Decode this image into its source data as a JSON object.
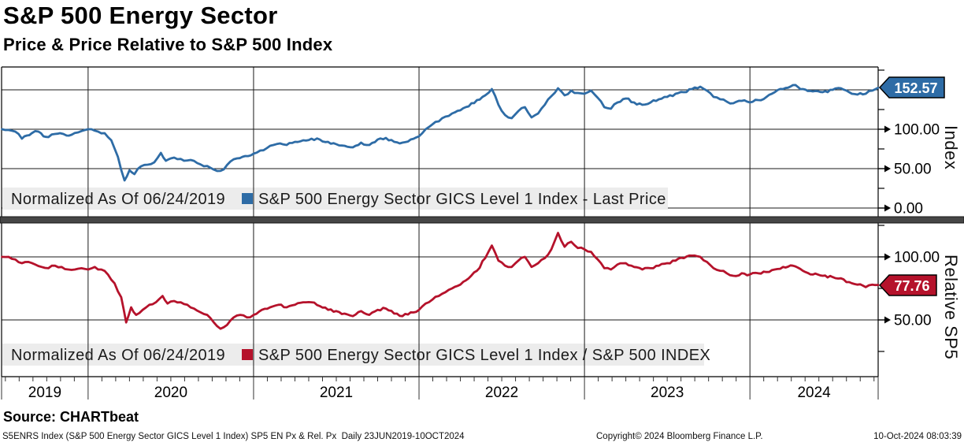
{
  "header": {
    "title": "S&P 500 Energy Sector",
    "subtitle": "Price & Price Relative to S&P 500 Index"
  },
  "chart_data": {
    "type": "line",
    "title": "S&P 500 Energy Sector",
    "subtitle": "Price & Price Relative to S&P 500 Index",
    "x_axis": {
      "start": 2019.477,
      "end": 2024.775,
      "date_range": "23JUN2019-10OCT2024",
      "years": [
        "2019",
        "2020",
        "2021",
        "2022",
        "2023",
        "2024"
      ]
    },
    "panels": [
      {
        "id": "price",
        "axis_title": "Index",
        "line_color": "#2e6ca6",
        "last_value": 152.57,
        "badge_label": "152.57",
        "legend_normalized": "Normalized As Of 06/24/2019",
        "legend_series": "S&P 500 Energy Sector GICS Level 1 Index - Last Price",
        "ticks": [
          {
            "v": 100,
            "label": "100.00"
          },
          {
            "v": 50,
            "label": "50.00"
          },
          {
            "v": 0,
            "label": "0.00"
          }
        ],
        "grid_values": [
          150,
          100,
          50,
          0
        ],
        "minor_ticks": [
          175,
          125,
          75,
          25
        ],
        "points": [
          [
            2019.48,
            100
          ],
          [
            2019.52,
            99
          ],
          [
            2019.56,
            97
          ],
          [
            2019.6,
            88
          ],
          [
            2019.63,
            92
          ],
          [
            2019.66,
            95
          ],
          [
            2019.7,
            97
          ],
          [
            2019.73,
            91
          ],
          [
            2019.76,
            90
          ],
          [
            2019.8,
            94
          ],
          [
            2019.83,
            95
          ],
          [
            2019.87,
            92
          ],
          [
            2019.9,
            93
          ],
          [
            2019.94,
            96
          ],
          [
            2019.98,
            99
          ],
          [
            2020.02,
            100
          ],
          [
            2020.06,
            97
          ],
          [
            2020.1,
            95
          ],
          [
            2020.14,
            86
          ],
          [
            2020.18,
            65
          ],
          [
            2020.22,
            35
          ],
          [
            2020.25,
            48
          ],
          [
            2020.28,
            43
          ],
          [
            2020.32,
            53
          ],
          [
            2020.36,
            55
          ],
          [
            2020.4,
            58
          ],
          [
            2020.44,
            70
          ],
          [
            2020.47,
            60
          ],
          [
            2020.5,
            63
          ],
          [
            2020.54,
            62
          ],
          [
            2020.58,
            60
          ],
          [
            2020.62,
            61
          ],
          [
            2020.66,
            57
          ],
          [
            2020.7,
            53
          ],
          [
            2020.74,
            51
          ],
          [
            2020.78,
            47
          ],
          [
            2020.82,
            49
          ],
          [
            2020.86,
            59
          ],
          [
            2020.9,
            63
          ],
          [
            2020.95,
            66
          ],
          [
            2021.0,
            69
          ],
          [
            2021.04,
            73
          ],
          [
            2021.08,
            76
          ],
          [
            2021.12,
            80
          ],
          [
            2021.16,
            82
          ],
          [
            2021.2,
            80
          ],
          [
            2021.25,
            84
          ],
          [
            2021.3,
            86
          ],
          [
            2021.35,
            88
          ],
          [
            2021.4,
            87
          ],
          [
            2021.45,
            84
          ],
          [
            2021.5,
            81
          ],
          [
            2021.55,
            79
          ],
          [
            2021.6,
            77
          ],
          [
            2021.65,
            83
          ],
          [
            2021.7,
            80
          ],
          [
            2021.75,
            87
          ],
          [
            2021.8,
            89
          ],
          [
            2021.85,
            84
          ],
          [
            2021.9,
            83
          ],
          [
            2021.95,
            87
          ],
          [
            2022.0,
            91
          ],
          [
            2022.04,
            100
          ],
          [
            2022.08,
            106
          ],
          [
            2022.12,
            110
          ],
          [
            2022.16,
            116
          ],
          [
            2022.2,
            120
          ],
          [
            2022.25,
            124
          ],
          [
            2022.3,
            129
          ],
          [
            2022.35,
            137
          ],
          [
            2022.4,
            143
          ],
          [
            2022.44,
            151
          ],
          [
            2022.48,
            131
          ],
          [
            2022.52,
            118
          ],
          [
            2022.56,
            114
          ],
          [
            2022.6,
            123
          ],
          [
            2022.64,
            128
          ],
          [
            2022.68,
            115
          ],
          [
            2022.72,
            120
          ],
          [
            2022.76,
            131
          ],
          [
            2022.8,
            142
          ],
          [
            2022.84,
            152
          ],
          [
            2022.88,
            143
          ],
          [
            2022.92,
            149
          ],
          [
            2022.96,
            146
          ],
          [
            2023.0,
            145
          ],
          [
            2023.04,
            149
          ],
          [
            2023.08,
            140
          ],
          [
            2023.12,
            128
          ],
          [
            2023.16,
            126
          ],
          [
            2023.2,
            134
          ],
          [
            2023.25,
            139
          ],
          [
            2023.3,
            134
          ],
          [
            2023.35,
            131
          ],
          [
            2023.4,
            134
          ],
          [
            2023.45,
            138
          ],
          [
            2023.5,
            141
          ],
          [
            2023.55,
            145
          ],
          [
            2023.6,
            147
          ],
          [
            2023.65,
            151
          ],
          [
            2023.7,
            154
          ],
          [
            2023.74,
            149
          ],
          [
            2023.78,
            141
          ],
          [
            2023.82,
            138
          ],
          [
            2023.86,
            135
          ],
          [
            2023.9,
            133
          ],
          [
            2023.95,
            136
          ],
          [
            2024.0,
            134
          ],
          [
            2024.05,
            137
          ],
          [
            2024.1,
            141
          ],
          [
            2024.15,
            147
          ],
          [
            2024.2,
            151
          ],
          [
            2024.26,
            156
          ],
          [
            2024.32,
            151
          ],
          [
            2024.38,
            148
          ],
          [
            2024.44,
            147
          ],
          [
            2024.5,
            150
          ],
          [
            2024.55,
            152
          ],
          [
            2024.6,
            147
          ],
          [
            2024.65,
            144
          ],
          [
            2024.7,
            145
          ],
          [
            2024.74,
            149
          ],
          [
            2024.775,
            152.57
          ]
        ]
      },
      {
        "id": "relative",
        "axis_title": "Relative SP5",
        "line_color": "#b5122b",
        "last_value": 77.76,
        "badge_label": "77.76",
        "legend_normalized": "Normalized As Of 06/24/2019",
        "legend_series": "S&P 500 Energy Sector GICS Level 1 Index / S&P 500 INDEX",
        "ticks": [
          {
            "v": 100,
            "label": "100.00"
          },
          {
            "v": 50,
            "label": "50.00"
          }
        ],
        "grid_values": [
          100,
          50
        ],
        "minor_ticks": [
          125,
          75,
          25
        ],
        "points": [
          [
            2019.48,
            100
          ],
          [
            2019.52,
            100
          ],
          [
            2019.56,
            98
          ],
          [
            2019.6,
            95
          ],
          [
            2019.64,
            96
          ],
          [
            2019.68,
            94
          ],
          [
            2019.72,
            92
          ],
          [
            2019.76,
            91
          ],
          [
            2019.8,
            93
          ],
          [
            2019.84,
            92
          ],
          [
            2019.88,
            90
          ],
          [
            2019.92,
            90
          ],
          [
            2019.96,
            91
          ],
          [
            2020.0,
            90
          ],
          [
            2020.04,
            92
          ],
          [
            2020.08,
            90
          ],
          [
            2020.12,
            86
          ],
          [
            2020.16,
            79
          ],
          [
            2020.2,
            68
          ],
          [
            2020.23,
            48
          ],
          [
            2020.26,
            60
          ],
          [
            2020.29,
            54
          ],
          [
            2020.33,
            58
          ],
          [
            2020.37,
            62
          ],
          [
            2020.41,
            64
          ],
          [
            2020.45,
            69
          ],
          [
            2020.48,
            63
          ],
          [
            2020.52,
            65
          ],
          [
            2020.56,
            64
          ],
          [
            2020.6,
            62
          ],
          [
            2020.64,
            59
          ],
          [
            2020.68,
            56
          ],
          [
            2020.72,
            54
          ],
          [
            2020.76,
            48
          ],
          [
            2020.8,
            43
          ],
          [
            2020.84,
            46
          ],
          [
            2020.88,
            52
          ],
          [
            2020.92,
            54
          ],
          [
            2020.96,
            52
          ],
          [
            2021.0,
            54
          ],
          [
            2021.05,
            58
          ],
          [
            2021.1,
            60
          ],
          [
            2021.15,
            62
          ],
          [
            2021.2,
            60
          ],
          [
            2021.25,
            62
          ],
          [
            2021.3,
            64
          ],
          [
            2021.35,
            64
          ],
          [
            2021.4,
            61
          ],
          [
            2021.45,
            58
          ],
          [
            2021.5,
            57
          ],
          [
            2021.55,
            55
          ],
          [
            2021.6,
            53
          ],
          [
            2021.65,
            57
          ],
          [
            2021.7,
            54
          ],
          [
            2021.75,
            58
          ],
          [
            2021.8,
            59
          ],
          [
            2021.85,
            55
          ],
          [
            2021.9,
            53
          ],
          [
            2021.95,
            56
          ],
          [
            2022.0,
            58
          ],
          [
            2022.04,
            63
          ],
          [
            2022.08,
            66
          ],
          [
            2022.12,
            69
          ],
          [
            2022.16,
            72
          ],
          [
            2022.2,
            75
          ],
          [
            2022.25,
            78
          ],
          [
            2022.3,
            83
          ],
          [
            2022.35,
            89
          ],
          [
            2022.4,
            99
          ],
          [
            2022.44,
            109
          ],
          [
            2022.48,
            97
          ],
          [
            2022.52,
            93
          ],
          [
            2022.56,
            92
          ],
          [
            2022.6,
            97
          ],
          [
            2022.64,
            100
          ],
          [
            2022.68,
            92
          ],
          [
            2022.72,
            95
          ],
          [
            2022.76,
            99
          ],
          [
            2022.8,
            106
          ],
          [
            2022.84,
            119
          ],
          [
            2022.88,
            108
          ],
          [
            2022.92,
            112
          ],
          [
            2022.96,
            107
          ],
          [
            2023.0,
            106
          ],
          [
            2023.04,
            104
          ],
          [
            2023.08,
            98
          ],
          [
            2023.12,
            91
          ],
          [
            2023.16,
            90
          ],
          [
            2023.2,
            94
          ],
          [
            2023.25,
            95
          ],
          [
            2023.3,
            92
          ],
          [
            2023.35,
            90
          ],
          [
            2023.4,
            91
          ],
          [
            2023.45,
            93
          ],
          [
            2023.5,
            95
          ],
          [
            2023.55,
            97
          ],
          [
            2023.6,
            99
          ],
          [
            2023.65,
            101
          ],
          [
            2023.7,
            100
          ],
          [
            2023.74,
            96
          ],
          [
            2023.78,
            91
          ],
          [
            2023.82,
            89
          ],
          [
            2023.86,
            87
          ],
          [
            2023.9,
            85
          ],
          [
            2023.95,
            87
          ],
          [
            2024.0,
            86
          ],
          [
            2024.05,
            87
          ],
          [
            2024.1,
            88
          ],
          [
            2024.15,
            90
          ],
          [
            2024.2,
            92
          ],
          [
            2024.26,
            93
          ],
          [
            2024.32,
            89
          ],
          [
            2024.38,
            86
          ],
          [
            2024.44,
            85
          ],
          [
            2024.5,
            84
          ],
          [
            2024.55,
            83
          ],
          [
            2024.6,
            80
          ],
          [
            2024.65,
            78
          ],
          [
            2024.7,
            76
          ],
          [
            2024.74,
            78
          ],
          [
            2024.775,
            77.76
          ]
        ]
      }
    ]
  },
  "source": "Source: CHARTbeat",
  "footer": {
    "left": "S5ENRS Index (S&P 500 Energy Sector GICS Level 1 Index) SP5 EN Px & Rel. Px  Daily 23JUN2019-10OCT2024",
    "center": "Copyright© 2024 Bloomberg Finance L.P.",
    "right": "10-Oct-2024 08:03:39"
  }
}
